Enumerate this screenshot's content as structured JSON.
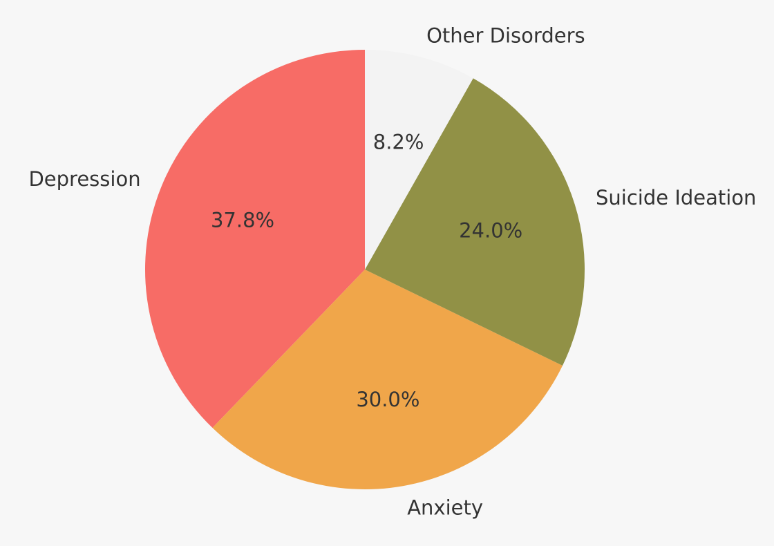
{
  "chart_data": {
    "type": "pie",
    "title": "",
    "start_angle_deg": 90,
    "direction": "counterclockwise",
    "slices": [
      {
        "label": "Depression",
        "value": 37.8,
        "pct_label": "37.8%",
        "color": "#f76c66"
      },
      {
        "label": "Anxiety",
        "value": 30.0,
        "pct_label": "30.0%",
        "color": "#f0a64a"
      },
      {
        "label": "Suicide Ideation",
        "value": 24.0,
        "pct_label": "24.0%",
        "color": "#919146"
      },
      {
        "label": "Other Disorders",
        "value": 8.2,
        "pct_label": "8.2%",
        "color": "#f3f3f3"
      }
    ]
  }
}
